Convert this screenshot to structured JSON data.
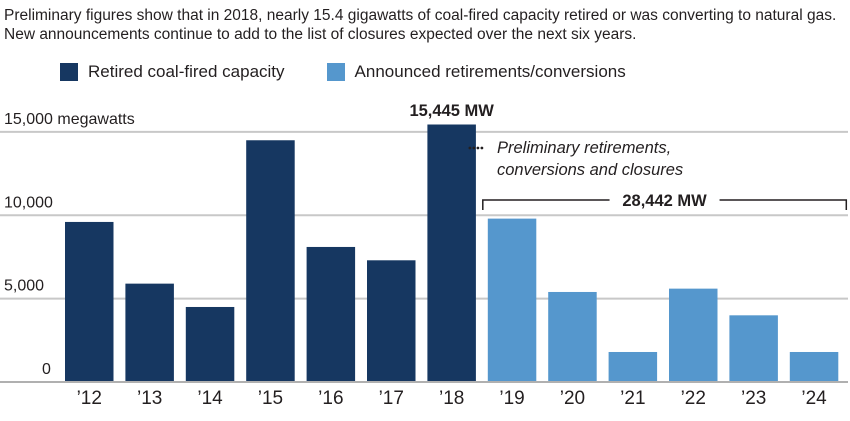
{
  "subtitle": "Preliminary figures show that in 2018, nearly 15.4 gigawatts of coal-fired capacity retired or was converting to natural gas. New announcements continue to add to the list of closures expected over the next six years.",
  "colors": {
    "retired": "#163761",
    "announced": "#5597cd",
    "grid": "#c8c8c8",
    "text": "#231f20"
  },
  "chart_data": {
    "type": "bar",
    "categories": [
      "’12",
      "’13",
      "’14",
      "’15",
      "’16",
      "’17",
      "’18",
      "’19",
      "’20",
      "’21",
      "’22",
      "’23",
      "’24"
    ],
    "series": [
      {
        "name": "Retired coal-fired capacity",
        "values": [
          9600,
          5900,
          4500,
          14500,
          8100,
          7300,
          15445,
          null,
          null,
          null,
          null,
          null,
          null
        ]
      },
      {
        "name": "Announced retirements/conversions",
        "values": [
          null,
          null,
          null,
          null,
          null,
          null,
          null,
          9800,
          5400,
          1800,
          5600,
          4000,
          1800
        ]
      }
    ],
    "ylim": [
      0,
      15445
    ],
    "yticks": [
      0,
      5000,
      10000,
      15000
    ],
    "ytick_labels": [
      "0",
      "5,000",
      "10,000",
      "15,000 megawatts"
    ],
    "grid": true,
    "legend_position": "top-left",
    "annotations": {
      "peak_label": "15,445 MW",
      "preliminary_line1": "Preliminary retirements,",
      "preliminary_line2": "conversions and closures",
      "bracket_label": "28,442 MW"
    }
  }
}
